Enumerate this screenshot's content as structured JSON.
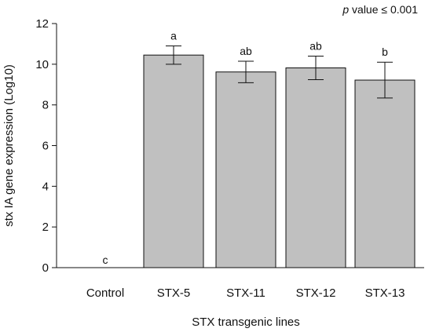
{
  "chart_data": {
    "type": "bar",
    "title": "",
    "annotation": {
      "italic_part": "p",
      "rest": " value ≤ 0.001"
    },
    "xlabel": "STX transgenic lines",
    "ylabel": "stx IA gene expression (Log10)",
    "ylim": [
      0,
      12
    ],
    "yticks": [
      0,
      2,
      4,
      6,
      8,
      10,
      12
    ],
    "grid": false,
    "legend": "none",
    "categories": [
      "Control",
      "STX-5",
      "STX-11",
      "STX-12",
      "STX-13"
    ],
    "values": [
      0,
      10.45,
      9.62,
      9.82,
      9.22
    ],
    "errors": [
      0,
      0.45,
      0.53,
      0.58,
      0.88
    ],
    "significance": [
      "c",
      "a",
      "ab",
      "ab",
      "b"
    ],
    "bar_color": "#c0c0c0",
    "edge_color": "#111111"
  }
}
